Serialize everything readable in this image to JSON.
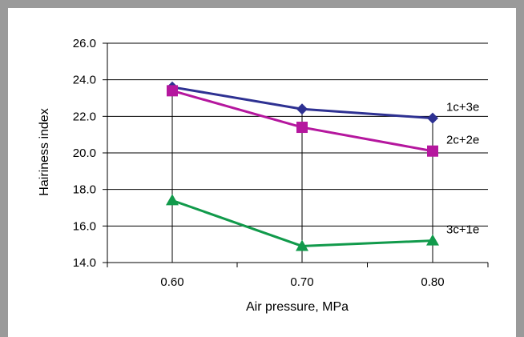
{
  "chart_data": {
    "type": "line",
    "categories": [
      "0.60",
      "0.70",
      "0.80"
    ],
    "x": [
      0.6,
      0.7,
      0.8
    ],
    "series": [
      {
        "name": "1c+3e",
        "values": [
          23.6,
          22.4,
          21.9
        ],
        "color": "#2e3192",
        "marker": "diamond"
      },
      {
        "name": "2c+2e",
        "values": [
          23.4,
          21.4,
          20.1
        ],
        "color": "#b5179e",
        "marker": "square"
      },
      {
        "name": "3c+1e",
        "values": [
          17.4,
          14.9,
          15.2
        ],
        "color": "#119a4b",
        "marker": "triangle"
      }
    ],
    "xlabel": "Air pressure, MPa",
    "ylabel": "Hairiness index",
    "ylim": [
      14.0,
      26.0
    ],
    "yticks": [
      "14.0",
      "16.0",
      "18.0",
      "20.0",
      "22.0",
      "24.0",
      "26.0"
    ],
    "grid": "horizontal",
    "legend": "labels at line ends"
  }
}
